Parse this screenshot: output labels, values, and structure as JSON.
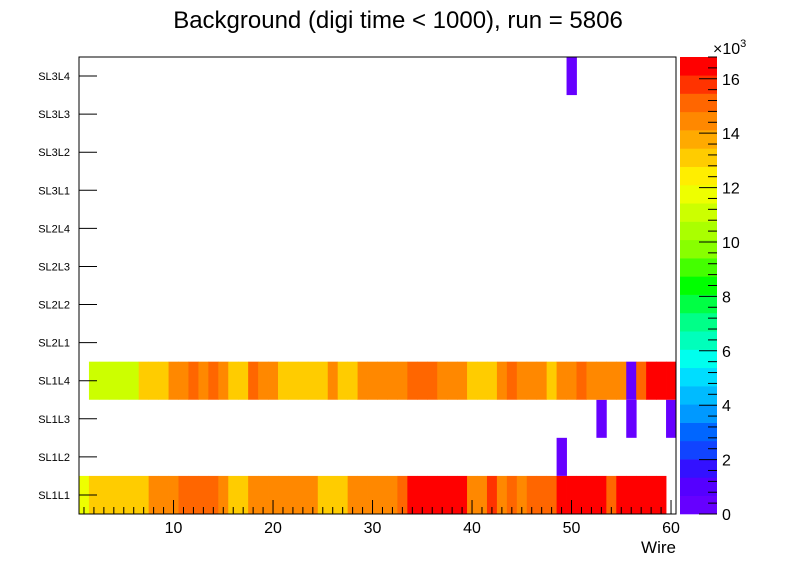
{
  "chart_data": {
    "type": "heatmap",
    "title": "Background (digi time < 1000), run = 5806",
    "xlabel": "Wire",
    "ylabel": "",
    "xlim": [
      0.5,
      60.5
    ],
    "x_ticks": [
      10,
      20,
      30,
      40,
      50,
      60
    ],
    "y_categories": [
      "SL1L1",
      "SL1L2",
      "SL1L3",
      "SL1L4",
      "SL2L1",
      "SL2L2",
      "SL2L3",
      "SL2L4",
      "SL3L1",
      "SL3L2",
      "SL3L3",
      "SL3L4"
    ],
    "zlim": [
      0,
      16800
    ],
    "z_axis_multiplier": "×10",
    "z_axis_exponent": "3",
    "z_ticks": [
      {
        "value": 0,
        "label": "0"
      },
      {
        "value": 2000,
        "label": "2"
      },
      {
        "value": 4000,
        "label": "4"
      },
      {
        "value": 6000,
        "label": "6"
      },
      {
        "value": 8000,
        "label": "8"
      },
      {
        "value": 10000,
        "label": "10"
      },
      {
        "value": 12000,
        "label": "12"
      },
      {
        "value": 14000,
        "label": "14"
      },
      {
        "value": 16000,
        "label": "16"
      }
    ],
    "palette": [
      "#6600ff",
      "#5500ff",
      "#3311ff",
      "#1144ff",
      "#0066ff",
      "#0099ff",
      "#00bbff",
      "#00ddff",
      "#00ffee",
      "#00ffbb",
      "#00ff88",
      "#00ff44",
      "#00ff00",
      "#44ff00",
      "#88ff00",
      "#aaff00",
      "#ccff00",
      "#eeff00",
      "#ffee00",
      "#ffcc00",
      "#ffaa00",
      "#ff8800",
      "#ff6600",
      "#ff3300",
      "#ff0000"
    ],
    "rows": [
      {
        "layer": "SL1L1",
        "values": [
          11500,
          12800,
          13200,
          13200,
          13200,
          13200,
          13200,
          14200,
          14200,
          14200,
          15200,
          15200,
          15200,
          15200,
          14200,
          13200,
          13200,
          14200,
          14200,
          14200,
          14200,
          14200,
          14200,
          14200,
          13200,
          13200,
          13200,
          14200,
          14200,
          14200,
          14200,
          14200,
          15200,
          16500,
          16500,
          16500,
          16500,
          16500,
          16500,
          14200,
          14200,
          16000,
          14200,
          15200,
          14200,
          15200,
          15200,
          15200,
          16500,
          16500,
          16500,
          16500,
          16500,
          15200,
          16500,
          16500,
          16800,
          16800,
          16800,
          0
        ]
      },
      {
        "layer": "SL1L2",
        "values": [
          0,
          0,
          0,
          0,
          0,
          0,
          0,
          0,
          0,
          0,
          0,
          0,
          0,
          0,
          0,
          0,
          0,
          0,
          0,
          0,
          0,
          0,
          0,
          0,
          0,
          0,
          0,
          0,
          0,
          0,
          0,
          0,
          0,
          0,
          0,
          0,
          0,
          0,
          0,
          0,
          0,
          0,
          0,
          0,
          0,
          0,
          0,
          0,
          500,
          0,
          0,
          0,
          0,
          0,
          0,
          0,
          0,
          0,
          0,
          0
        ]
      },
      {
        "layer": "SL1L3",
        "values": [
          0,
          0,
          0,
          0,
          0,
          0,
          0,
          0,
          0,
          0,
          0,
          0,
          0,
          0,
          0,
          0,
          0,
          0,
          0,
          0,
          0,
          0,
          0,
          0,
          0,
          0,
          0,
          0,
          0,
          0,
          0,
          0,
          0,
          0,
          0,
          0,
          0,
          0,
          0,
          0,
          0,
          0,
          0,
          0,
          0,
          0,
          0,
          0,
          0,
          0,
          0,
          0,
          500,
          0,
          0,
          500,
          0,
          0,
          0,
          500
        ]
      },
      {
        "layer": "SL1L4",
        "values": [
          0,
          11000,
          11000,
          11000,
          11000,
          11000,
          12800,
          13200,
          13200,
          14200,
          14200,
          15200,
          14200,
          15200,
          14200,
          13200,
          13200,
          15200,
          14200,
          14200,
          13200,
          13200,
          13200,
          13200,
          13200,
          14200,
          13200,
          12800,
          14200,
          14200,
          14200,
          14200,
          14200,
          15200,
          15200,
          15200,
          14200,
          14200,
          14200,
          13200,
          13200,
          13200,
          14200,
          15200,
          14200,
          14200,
          14200,
          13200,
          14200,
          14200,
          15200,
          14200,
          14200,
          14200,
          14200,
          500,
          15200,
          16500,
          16500,
          16500
        ]
      },
      {
        "layer": "SL2L1",
        "values": []
      },
      {
        "layer": "SL2L2",
        "values": []
      },
      {
        "layer": "SL2L3",
        "values": []
      },
      {
        "layer": "SL2L4",
        "values": []
      },
      {
        "layer": "SL3L1",
        "values": []
      },
      {
        "layer": "SL3L2",
        "values": []
      },
      {
        "layer": "SL3L3",
        "values": []
      },
      {
        "layer": "SL3L4",
        "values": [
          0,
          0,
          0,
          0,
          0,
          0,
          0,
          0,
          0,
          0,
          0,
          0,
          0,
          0,
          0,
          0,
          0,
          0,
          0,
          0,
          0,
          0,
          0,
          0,
          0,
          0,
          0,
          0,
          0,
          0,
          0,
          0,
          0,
          0,
          0,
          0,
          0,
          0,
          0,
          0,
          0,
          0,
          0,
          0,
          0,
          0,
          0,
          0,
          0,
          500,
          0,
          0,
          0,
          0,
          0,
          0,
          0,
          0,
          0,
          0
        ]
      }
    ]
  }
}
